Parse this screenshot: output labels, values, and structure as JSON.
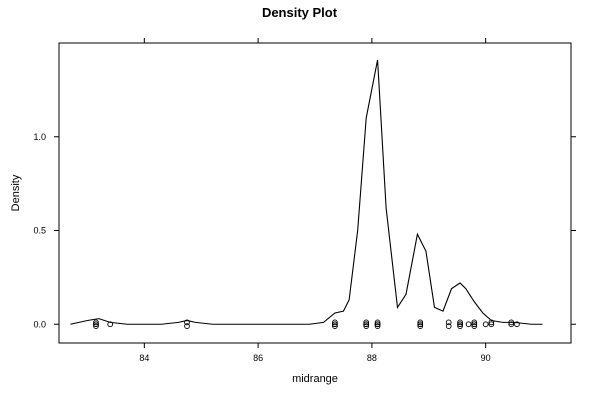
{
  "chart_data": {
    "type": "line",
    "title": "Density Plot",
    "xlabel": "midrange",
    "ylabel": "Density",
    "xlim": [
      82.5,
      91.5
    ],
    "ylim": [
      -0.1,
      1.5
    ],
    "xticks": [
      84,
      86,
      88,
      90
    ],
    "xtick_labels": [
      "84",
      "86",
      "88",
      "90"
    ],
    "yticks": [
      0.0,
      0.5,
      1.0
    ],
    "ytick_labels": [
      "0.0",
      "0.5",
      "1.0"
    ],
    "grid": false,
    "legend": "none",
    "line_color": "#000000",
    "density_curve": {
      "x": [
        82.7,
        83.0,
        83.2,
        83.4,
        83.7,
        84.0,
        84.3,
        84.6,
        84.75,
        84.9,
        85.2,
        85.6,
        86.0,
        86.5,
        86.9,
        87.15,
        87.35,
        87.5,
        87.6,
        87.75,
        87.9,
        88.1,
        88.25,
        88.45,
        88.6,
        88.8,
        88.95,
        89.1,
        89.25,
        89.4,
        89.55,
        89.65,
        89.8,
        89.95,
        90.1,
        90.3,
        90.5,
        90.8,
        91.0
      ],
      "y": [
        0.0,
        0.02,
        0.03,
        0.01,
        0.0,
        0.0,
        0.0,
        0.01,
        0.02,
        0.01,
        0.0,
        0.0,
        0.0,
        0.0,
        0.0,
        0.01,
        0.06,
        0.07,
        0.13,
        0.5,
        1.1,
        1.41,
        0.62,
        0.09,
        0.16,
        0.48,
        0.39,
        0.09,
        0.07,
        0.19,
        0.22,
        0.19,
        0.12,
        0.06,
        0.02,
        0.01,
        0.01,
        0.0,
        0.0
      ]
    },
    "rug_points": {
      "x": [
        83.15,
        83.15,
        83.15,
        83.15,
        83.4,
        84.75,
        84.75,
        87.35,
        87.35,
        87.35,
        87.35,
        87.9,
        87.9,
        87.9,
        87.9,
        87.9,
        88.1,
        88.1,
        88.1,
        88.1,
        88.1,
        88.85,
        88.85,
        88.85,
        88.85,
        88.85,
        89.35,
        89.35,
        89.55,
        89.55,
        89.55,
        89.55,
        89.7,
        89.8,
        89.8,
        89.8,
        89.8,
        90.0,
        90.1,
        90.1,
        90.45,
        90.45,
        90.55
      ],
      "y": [
        -0.01,
        0.0,
        0.0,
        0.01,
        0.0,
        0.01,
        -0.01,
        -0.01,
        0.0,
        0.0,
        0.01,
        -0.01,
        0.0,
        0.0,
        0.01,
        0.0,
        -0.01,
        0.0,
        0.0,
        0.01,
        0.0,
        -0.01,
        0.0,
        0.0,
        0.01,
        0.0,
        0.01,
        -0.01,
        -0.01,
        0.0,
        0.0,
        0.01,
        0.0,
        -0.01,
        0.0,
        0.0,
        0.01,
        0.0,
        0.0,
        0.01,
        0.0,
        0.01,
        0.0
      ]
    }
  }
}
